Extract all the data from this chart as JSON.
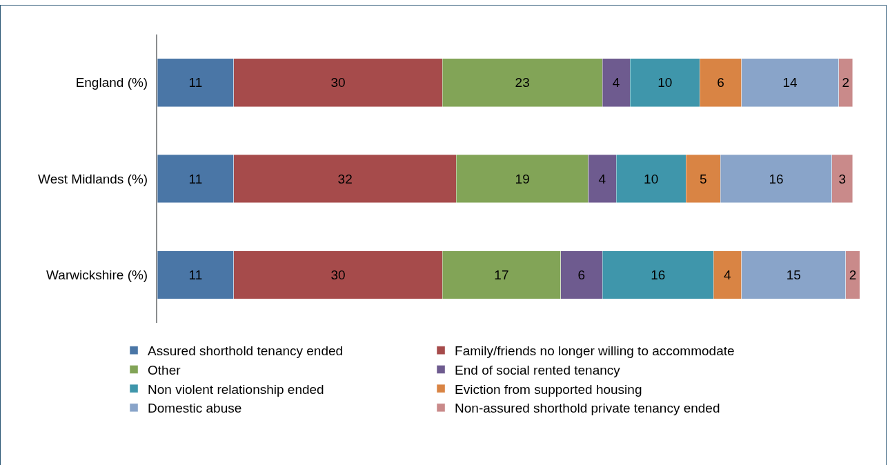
{
  "chart_data": {
    "type": "bar",
    "orientation": "horizontal",
    "stacked": true,
    "data_labels": true,
    "legend": "bottom",
    "tick_labels": "y",
    "xlim": [
      0,
      101
    ],
    "categories": [
      "England (%)",
      "West Midlands (%)",
      "Warwickshire (%)"
    ],
    "series": [
      {
        "name": "Assured shorthold tenancy ended",
        "color": "#4a76a6",
        "values": [
          11,
          11,
          11
        ]
      },
      {
        "name": "Family/friends no longer willing to accommodate",
        "color": "#a64b4b",
        "values": [
          30,
          32,
          30
        ]
      },
      {
        "name": "Other",
        "color": "#82a457",
        "values": [
          23,
          19,
          17
        ]
      },
      {
        "name": "End of social rented tenancy",
        "color": "#6e5b8f",
        "values": [
          4,
          4,
          6
        ]
      },
      {
        "name": "Non violent relationship ended",
        "color": "#3f96ab",
        "values": [
          10,
          10,
          16
        ]
      },
      {
        "name": "Eviction from supported housing",
        "color": "#d98444",
        "values": [
          6,
          5,
          4
        ]
      },
      {
        "name": "Domestic abuse",
        "color": "#89a4c9",
        "values": [
          14,
          16,
          15
        ]
      },
      {
        "name": "Non-assured shorthold private tenancy ended",
        "color": "#c98a8a",
        "values": [
          2,
          3,
          2
        ]
      }
    ]
  }
}
